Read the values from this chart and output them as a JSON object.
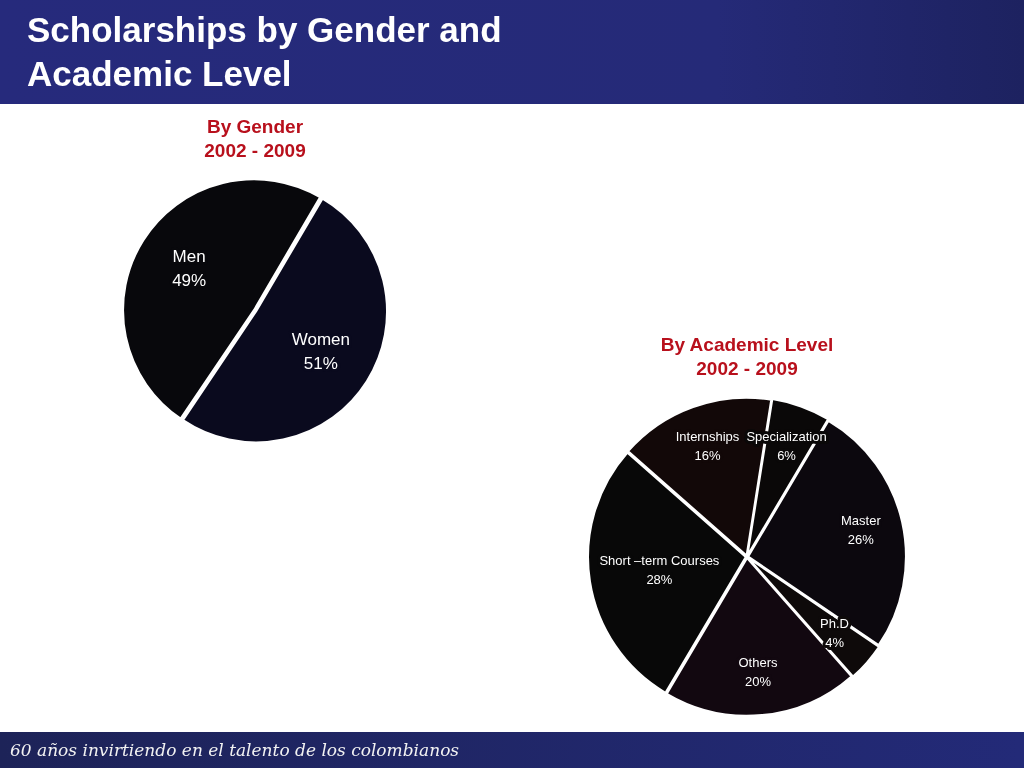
{
  "chart_data": [
    {
      "type": "pie",
      "title": "By Gender",
      "subtitle": "2002 - 2009",
      "categories": [
        "Men",
        "Women"
      ],
      "values": [
        49,
        51
      ],
      "value_labels": [
        "49%",
        "51%"
      ],
      "colors": [
        "#08080c",
        "#0a0a1e"
      ],
      "legend": false,
      "annotations": [
        "Scholarships by Gender and Academic Level"
      ]
    },
    {
      "type": "pie",
      "title": "By Academic Level",
      "subtitle": "2002 - 2009",
      "categories": [
        "Specialization",
        "Master",
        "Ph.D",
        "Others",
        "Short –term Courses",
        "Internships"
      ],
      "values": [
        6,
        26,
        4,
        20,
        28,
        16
      ],
      "value_labels": [
        "6%",
        "26%",
        "4%",
        "20%",
        "28%",
        "16%"
      ],
      "colors": [
        "#0a0808",
        "#0c080e",
        "#0e0a0a",
        "#120810",
        "#080808",
        "#120808"
      ],
      "legend": false,
      "annotations": [
        "60 años invirtiendo en el talento de los colombianos"
      ]
    }
  ]
}
